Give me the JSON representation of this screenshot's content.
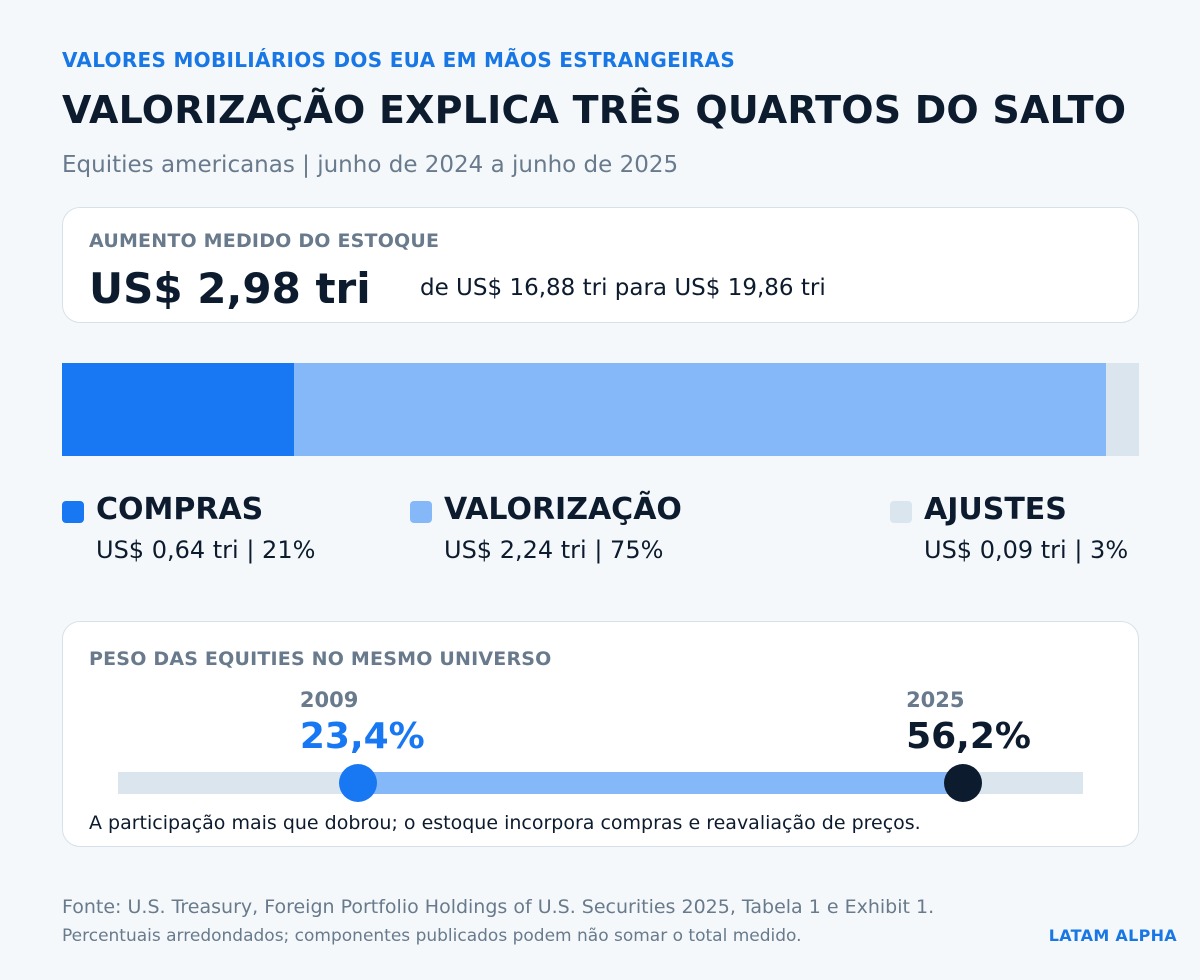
{
  "header": {
    "kicker": "VALORES MOBILIÁRIOS DOS EUA EM MÃOS ESTRANGEIRAS",
    "title": "VALORIZAÇÃO EXPLICA TRÊS QUARTOS DO SALTO",
    "subtitle": "Equities americanas | junho de 2024 a junho de 2025"
  },
  "summary": {
    "label": "AUMENTO MEDIDO DO ESTOQUE",
    "value": "US$ 2,98 tri",
    "range": "de US$ 16,88 tri para US$ 19,86 tri"
  },
  "chart_data": [
    {
      "type": "bar",
      "orientation": "horizontal-stacked",
      "categories": [
        "COMPRAS",
        "VALORIZAÇÃO",
        "AJUSTES"
      ],
      "values": [
        0.64,
        2.24,
        0.09
      ],
      "unit": "US$ tri",
      "shares_pct": [
        21,
        75,
        3
      ],
      "value_labels": [
        "US$ 0,64 tri  |  21%",
        "US$ 2,24 tri  |  75%",
        "US$ 0,09 tri  |  3%"
      ],
      "colors": [
        "#1877f2",
        "#85b8f8",
        "#dbe5ee"
      ]
    },
    {
      "type": "line",
      "title": "PESO DAS EQUITIES NO MESMO UNIVERSO",
      "x": [
        "2009",
        "2025"
      ],
      "values": [
        23.4,
        56.2
      ],
      "value_labels": [
        "23,4%",
        "56,2%"
      ],
      "ylim": [
        0,
        100
      ],
      "colors": [
        "#1877f2",
        "#0d1b2e"
      ],
      "note": "A participação mais que dobrou; o estoque incorpora compras e reavaliação de preços."
    }
  ],
  "footer": {
    "source": "Fonte: U.S. Treasury, Foreign Portfolio Holdings of U.S. Securities 2025, Tabela 1 e Exhibit 1.",
    "note": "Percentuais arredondados; componentes publicados podem não somar o total medido.",
    "brand": "LATAM ALPHA"
  }
}
